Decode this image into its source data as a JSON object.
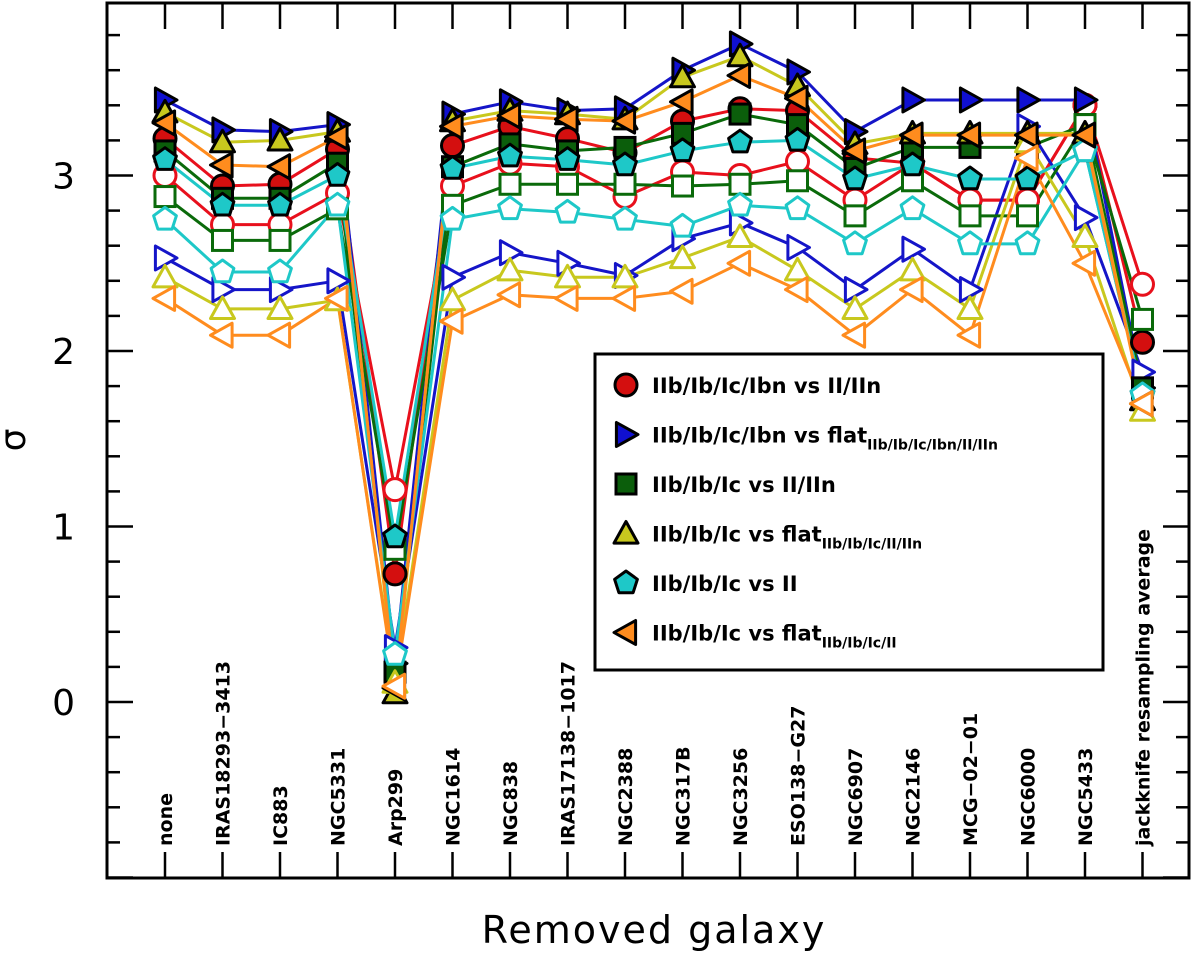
{
  "chart_data": {
    "type": "line",
    "xlabel": "Removed galaxy",
    "ylabel": "σ",
    "ylim": [
      -1,
      4
    ],
    "yticks": [
      "0",
      "1",
      "2",
      "3"
    ],
    "categories": [
      "none",
      "IRAS18293−3413",
      "IC883",
      "NGC5331",
      "Arp299",
      "NGC1614",
      "NGC838",
      "IRAS17138−1017",
      "NGC2388",
      "NGC317B",
      "NGC3256",
      "ESO138−G27",
      "NGC6907",
      "NGC2146",
      "MCG−02−01",
      "NGC6000",
      "NGC5433",
      "jackknife resampling average"
    ],
    "series": [
      {
        "name": "IIb/Ib/Ic/Ibn vs II/IIn",
        "label_main": "IIb/Ib/Ic/Ibn vs II/IIn",
        "label_sub": "",
        "color": "#e8101c",
        "fill": "#d40f0f",
        "marker": "circle",
        "values": [
          3.21,
          2.94,
          2.95,
          3.15,
          0.73,
          3.17,
          3.28,
          3.21,
          3.13,
          3.31,
          3.38,
          3.37,
          3.1,
          3.07,
          2.86,
          2.86,
          3.4,
          2.05
        ]
      },
      {
        "name": "IIb/Ib/Ic/Ibn vs II/IIn (open)",
        "label_main": "",
        "label_sub": "",
        "color": "#e8101c",
        "fill": "#ffffff",
        "marker": "circle",
        "values": [
          3.0,
          2.72,
          2.72,
          2.9,
          1.21,
          2.94,
          3.07,
          3.05,
          2.88,
          3.02,
          3.0,
          3.08,
          2.86,
          3.07,
          2.86,
          2.86,
          3.4,
          2.38
        ]
      },
      {
        "name": "IIb/Ib/Ic/Ibn vs flat",
        "label_main": "IIb/Ib/Ic/Ibn vs flat",
        "label_sub": "IIb/Ib/Ic/Ibn/II/IIn",
        "color": "#1515c8",
        "fill": "#1010d0",
        "marker": "tri-right",
        "values": [
          3.43,
          3.26,
          3.25,
          3.29,
          0.22,
          3.35,
          3.42,
          3.37,
          3.38,
          3.6,
          3.75,
          3.59,
          3.25,
          3.43,
          3.43,
          3.43,
          3.43,
          1.79
        ]
      },
      {
        "name": "IIb/Ib/Ic/Ibn vs flat (open)",
        "label_main": "",
        "label_sub": "",
        "color": "#1515c8",
        "fill": "#ffffff",
        "marker": "tri-right",
        "values": [
          2.53,
          2.35,
          2.35,
          2.4,
          0.31,
          2.42,
          2.56,
          2.5,
          2.43,
          2.64,
          2.73,
          2.59,
          2.35,
          2.58,
          2.35,
          3.28,
          2.76,
          1.88
        ]
      },
      {
        "name": "IIb/Ib/Ic vs II/IIn",
        "label_main": "IIb/Ib/Ic vs II/IIn",
        "label_sub": "",
        "color": "#0a6a0a",
        "fill": "#0b5e0b",
        "marker": "square",
        "values": [
          3.14,
          2.87,
          2.87,
          3.07,
          0.17,
          3.05,
          3.18,
          3.14,
          3.16,
          3.24,
          3.35,
          3.29,
          3.04,
          3.16,
          3.16,
          3.16,
          3.29,
          1.79
        ]
      },
      {
        "name": "IIb/Ib/Ic vs II/IIn (open)",
        "label_main": "",
        "label_sub": "",
        "color": "#0a6a0a",
        "fill": "#ffffff",
        "marker": "square",
        "values": [
          2.88,
          2.63,
          2.63,
          2.81,
          0.87,
          2.83,
          2.95,
          2.95,
          2.95,
          2.94,
          2.95,
          2.97,
          2.77,
          2.97,
          2.77,
          2.77,
          3.29,
          2.18
        ]
      },
      {
        "name": "IIb/Ib/Ic vs flat",
        "label_main": "IIb/Ib/Ic vs flat",
        "label_sub": "IIb/Ib/Ic/II/IIn",
        "color": "#c8c81e",
        "fill": "#c8c81e",
        "marker": "tri-up",
        "values": [
          3.36,
          3.19,
          3.2,
          3.25,
          0.05,
          3.31,
          3.37,
          3.35,
          3.32,
          3.56,
          3.68,
          3.51,
          3.18,
          3.24,
          3.24,
          3.24,
          3.24,
          1.72
        ]
      },
      {
        "name": "IIb/Ib/Ic vs flat (open)",
        "label_main": "",
        "label_sub": "",
        "color": "#c8c81e",
        "fill": "#ffffff",
        "marker": "tri-up",
        "values": [
          2.42,
          2.24,
          2.24,
          2.29,
          0.11,
          2.29,
          2.46,
          2.42,
          2.42,
          2.53,
          2.65,
          2.46,
          2.24,
          2.46,
          2.24,
          3.19,
          2.65,
          1.66
        ]
      },
      {
        "name": "IIb/Ib/Ic vs II",
        "label_main": "IIb/Ib/Ic vs II",
        "label_sub": "",
        "color": "#1ec8c8",
        "fill": "#1ec8c8",
        "marker": "pentagon",
        "values": [
          3.09,
          2.83,
          2.83,
          3.0,
          0.94,
          3.04,
          3.11,
          3.09,
          3.06,
          3.14,
          3.19,
          3.2,
          2.98,
          3.06,
          2.98,
          2.98,
          3.14,
          1.75
        ]
      },
      {
        "name": "IIb/Ib/Ic vs II (open)",
        "label_main": "",
        "label_sub": "",
        "color": "#1ec8c8",
        "fill": "#ffffff",
        "marker": "pentagon",
        "values": [
          2.75,
          2.45,
          2.45,
          2.83,
          0.27,
          2.75,
          2.81,
          2.79,
          2.75,
          2.71,
          2.83,
          2.81,
          2.61,
          2.81,
          2.61,
          2.61,
          3.14,
          1.75
        ]
      },
      {
        "name": "IIb/Ib/Ic vs flat",
        "label_main": "IIb/Ib/Ic vs flat",
        "label_sub": "IIb/Ib/Ic/II",
        "color": "#ff8c1e",
        "fill": "#ff8c1e",
        "marker": "tri-left",
        "values": [
          3.3,
          3.06,
          3.05,
          3.22,
          0.08,
          3.28,
          3.34,
          3.32,
          3.31,
          3.42,
          3.57,
          3.44,
          3.14,
          3.23,
          3.23,
          3.23,
          3.23,
          1.7
        ]
      },
      {
        "name": "IIb/Ib/Ic vs flat (open)",
        "label_main": "",
        "label_sub": "",
        "color": "#ff8c1e",
        "fill": "#ffffff",
        "marker": "tri-left",
        "values": [
          2.3,
          2.09,
          2.09,
          2.3,
          0.09,
          2.17,
          2.32,
          2.3,
          2.3,
          2.34,
          2.5,
          2.35,
          2.09,
          2.35,
          2.09,
          3.1,
          2.5,
          1.7
        ]
      }
    ]
  }
}
